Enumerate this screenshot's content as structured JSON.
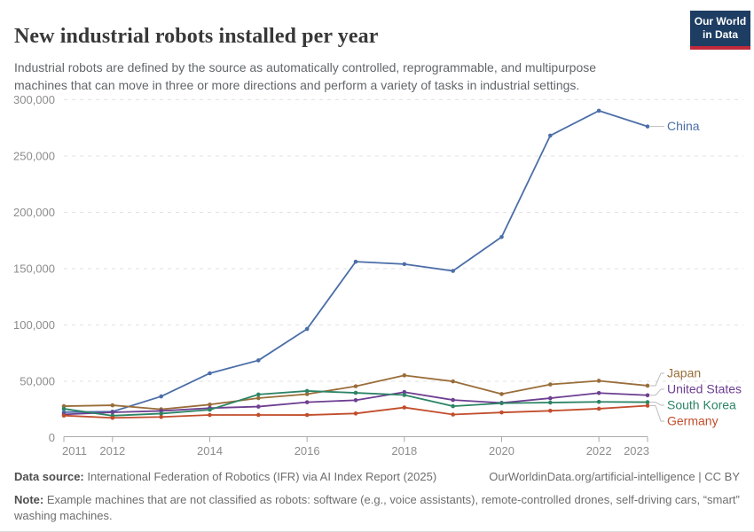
{
  "header": {
    "title": "New industrial robots installed per year",
    "subtitle": "Industrial robots are defined by the source as automatically controlled, reprogrammable, and multipurpose machines that can move in three or more directions and perform a variety of tasks in industrial settings.",
    "logo": {
      "line1": "Our World",
      "line2": "in Data",
      "bg_color": "#1D3D63",
      "accent_color": "#C0293B"
    }
  },
  "chart_data": {
    "type": "line",
    "x": [
      2011,
      2012,
      2013,
      2014,
      2015,
      2016,
      2017,
      2018,
      2019,
      2020,
      2021,
      2022,
      2023
    ],
    "x_tick_labels": [
      2011,
      2012,
      2014,
      2016,
      2018,
      2020,
      2022,
      2023
    ],
    "y_ticks": [
      0,
      50000,
      100000,
      150000,
      200000,
      250000,
      300000
    ],
    "ylim": [
      0,
      300000
    ],
    "grid": "horizontal-dashed",
    "legend_position": "right-end-labels",
    "series": [
      {
        "name": "China",
        "color": "#4C6EA8",
        "values": [
          22577,
          22987,
          36560,
          57096,
          68556,
          96500,
          156176,
          154032,
          148000,
          178132,
          268195,
          290258,
          276288
        ]
      },
      {
        "name": "Japan",
        "color": "#996D39",
        "values": [
          27894,
          28680,
          25110,
          29297,
          35023,
          38586,
          45566,
          55240,
          49908,
          38653,
          47182,
          50413,
          46106
        ]
      },
      {
        "name": "United States",
        "color": "#6D3E91",
        "values": [
          20555,
          22414,
          23679,
          26200,
          27504,
          31404,
          33192,
          40373,
          33378,
          30826,
          34987,
          39576,
          37587
        ]
      },
      {
        "name": "South Korea",
        "color": "#2C8465",
        "values": [
          25536,
          19424,
          21307,
          24721,
          38285,
          41373,
          39732,
          37807,
          27873,
          30506,
          31083,
          31716,
          31444
        ]
      },
      {
        "name": "Germany",
        "color": "#C24D2C",
        "values": [
          19533,
          17528,
          18297,
          20051,
          20105,
          20039,
          21404,
          26723,
          20473,
          22302,
          23777,
          25636,
          28355
        ]
      }
    ],
    "axis_color": "#ababab",
    "grid_color": "#e2e2e2",
    "tick_label_color": "#8d8d8d",
    "connector_color": "#bdbdbd"
  },
  "footer": {
    "datasource_label": "Data source:",
    "datasource_text": " International Federation of Robotics (IFR) via AI Index Report (2025)",
    "link_text": "OurWorldinData.org/artificial-intelligence | CC BY",
    "note_label": "Note:",
    "note_text": " Example machines that are not classified as robots: software (e.g., voice assistants), remote-controlled drones, self-driving cars, “smart” washing machines."
  }
}
